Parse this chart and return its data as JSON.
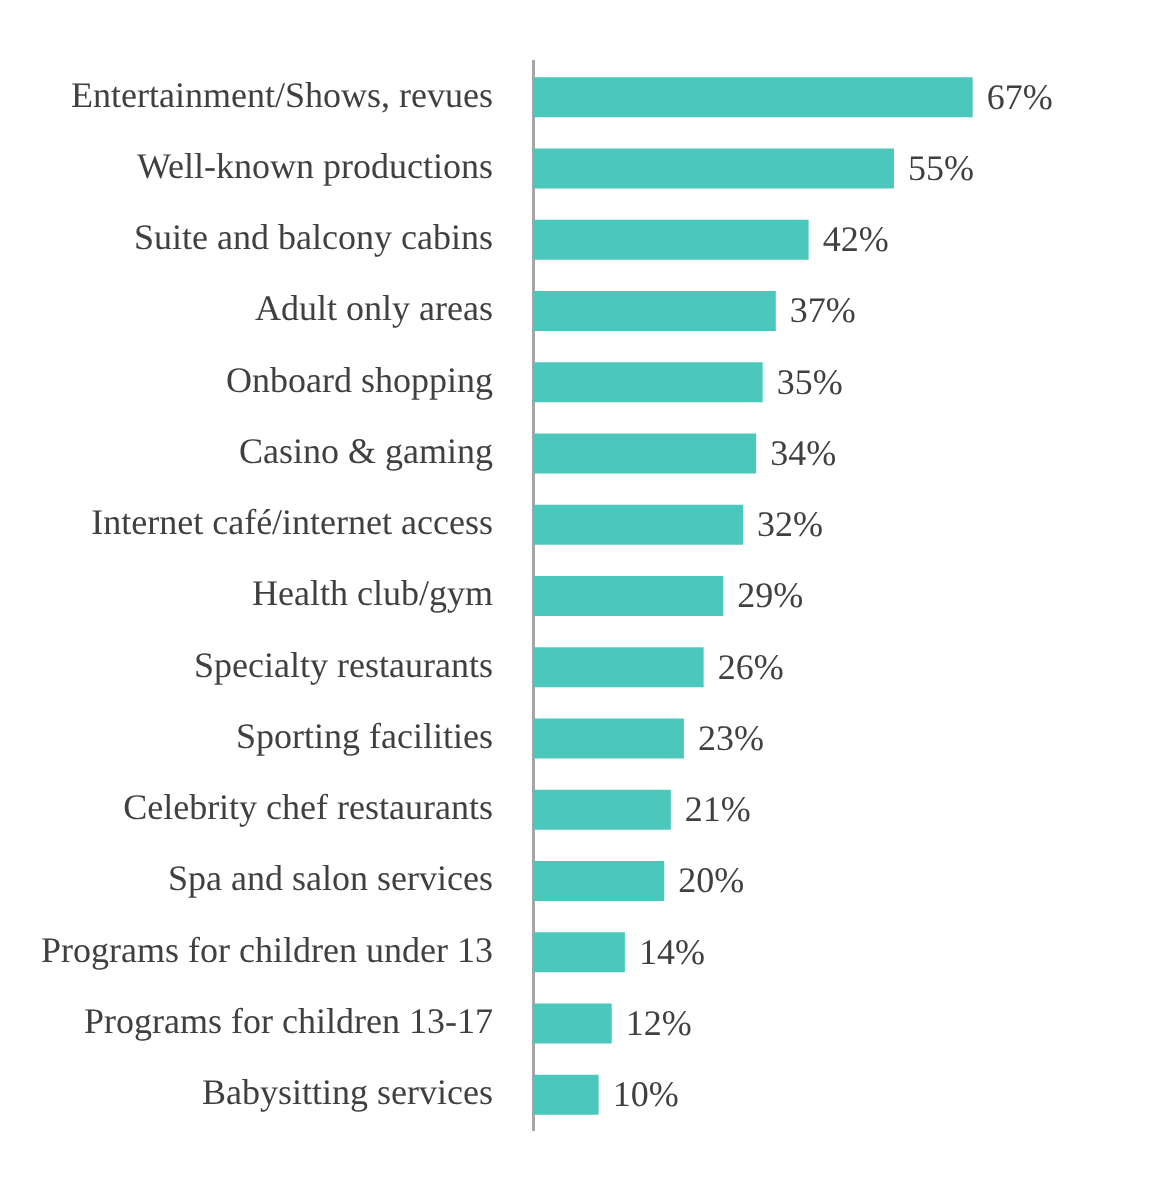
{
  "chart_data": {
    "type": "bar",
    "orientation": "horizontal",
    "categories": [
      "Entertainment/Shows, revues",
      "Well-known productions",
      "Suite and balcony cabins",
      "Adult only areas",
      "Onboard shopping",
      "Casino & gaming",
      "Internet café/internet access",
      "Health club/gym",
      "Specialty restaurants",
      "Sporting facilities",
      "Celebrity chef restaurants",
      "Spa and salon services",
      "Programs for children under 13",
      "Programs for children 13-17",
      "Babysitting services"
    ],
    "values": [
      67,
      55,
      42,
      37,
      35,
      34,
      32,
      29,
      26,
      23,
      21,
      20,
      14,
      12,
      10
    ],
    "value_labels": [
      "67%",
      "55%",
      "42%",
      "37%",
      "35%",
      "34%",
      "32%",
      "29%",
      "26%",
      "23%",
      "21%",
      "20%",
      "14%",
      "12%",
      "10%"
    ],
    "color": "#4cc7bc"
  }
}
